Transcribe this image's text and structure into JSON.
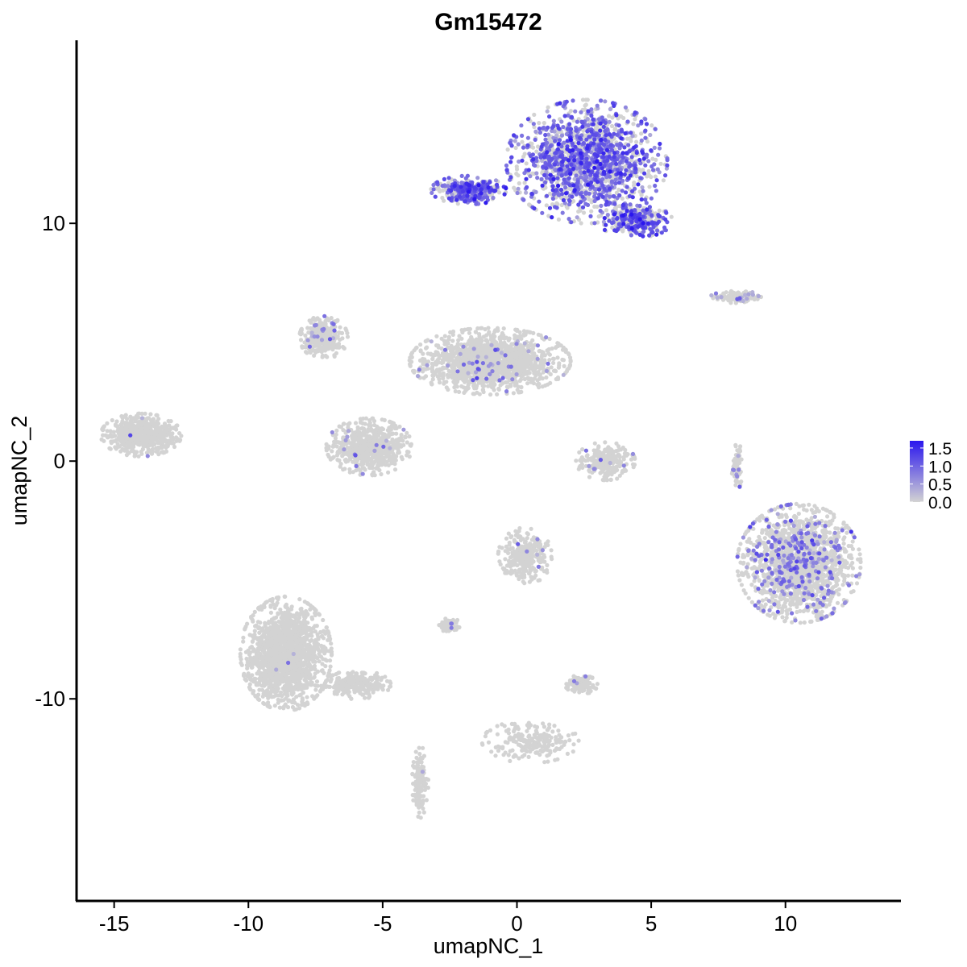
{
  "chart_data": {
    "type": "scatter",
    "title": "Gm15472",
    "xlabel": "umapNC_1",
    "ylabel": "umapNC_2",
    "xlim": [
      -16.4,
      14.3
    ],
    "ylim": [
      -18.5,
      17.7
    ],
    "x_ticks": [
      -15,
      -10,
      -5,
      0,
      5,
      10
    ],
    "x_tick_labels": [
      "-15",
      "-10",
      "-5",
      "0",
      "5",
      "10"
    ],
    "y_ticks": [
      -10,
      0,
      10
    ],
    "y_tick_labels": [
      "-10",
      "0",
      "10"
    ],
    "grid": false,
    "legend_position": "right",
    "color_scale": {
      "low": "#d3d3d3",
      "high": "#2a16ee",
      "min": 0.0,
      "max": 1.7,
      "ticks": [
        0.0,
        0.5,
        1.0,
        1.5
      ],
      "tick_labels": [
        "0.0",
        "0.5",
        "1.0",
        "1.5"
      ]
    },
    "clusters": [
      {
        "cx": 2.6,
        "cy": 12.6,
        "rx": 3.0,
        "ry": 2.6,
        "n": 1600,
        "expr_frac": 0.55,
        "expr_mean": 0.95
      },
      {
        "cx": -1.8,
        "cy": 11.4,
        "rx": 1.4,
        "ry": 0.6,
        "n": 350,
        "expr_frac": 0.6,
        "expr_mean": 1.0
      },
      {
        "cx": 4.4,
        "cy": 10.1,
        "rx": 1.4,
        "ry": 0.7,
        "n": 300,
        "expr_frac": 0.55,
        "expr_mean": 1.1
      },
      {
        "cx": 8.2,
        "cy": 6.9,
        "rx": 1.0,
        "ry": 0.25,
        "n": 120,
        "expr_frac": 0.15,
        "expr_mean": 0.6
      },
      {
        "cx": -7.2,
        "cy": 5.2,
        "rx": 0.9,
        "ry": 0.9,
        "n": 300,
        "expr_frac": 0.05,
        "expr_mean": 0.6
      },
      {
        "cx": -1.0,
        "cy": 4.2,
        "rx": 3.0,
        "ry": 1.4,
        "n": 1400,
        "expr_frac": 0.03,
        "expr_mean": 0.6
      },
      {
        "cx": -5.5,
        "cy": 0.6,
        "rx": 1.6,
        "ry": 1.2,
        "n": 700,
        "expr_frac": 0.03,
        "expr_mean": 0.6
      },
      {
        "cx": -14.0,
        "cy": 1.1,
        "rx": 1.5,
        "ry": 0.9,
        "n": 600,
        "expr_frac": 0.01,
        "expr_mean": 0.6
      },
      {
        "cx": 3.3,
        "cy": 0.0,
        "rx": 1.1,
        "ry": 0.8,
        "n": 250,
        "expr_frac": 0.03,
        "expr_mean": 0.6
      },
      {
        "cx": 10.5,
        "cy": -4.3,
        "rx": 2.3,
        "ry": 2.5,
        "n": 1700,
        "expr_frac": 0.14,
        "expr_mean": 0.75
      },
      {
        "cx": 0.3,
        "cy": -4.0,
        "rx": 1.0,
        "ry": 1.2,
        "n": 300,
        "expr_frac": 0.02,
        "expr_mean": 0.6
      },
      {
        "cx": -8.6,
        "cy": -8.1,
        "rx": 1.7,
        "ry": 2.4,
        "n": 1600,
        "expr_frac": 0.004,
        "expr_mean": 0.6
      },
      {
        "cx": -6.0,
        "cy": -9.4,
        "rx": 1.3,
        "ry": 0.6,
        "n": 250,
        "expr_frac": 0.0,
        "expr_mean": 0.0
      },
      {
        "cx": -3.6,
        "cy": -13.5,
        "rx": 0.3,
        "ry": 1.5,
        "n": 150,
        "expr_frac": 0.01,
        "expr_mean": 0.6
      },
      {
        "cx": 2.4,
        "cy": -9.4,
        "rx": 0.6,
        "ry": 0.4,
        "n": 120,
        "expr_frac": 0.03,
        "expr_mean": 0.6
      },
      {
        "cx": -2.5,
        "cy": -6.9,
        "rx": 0.4,
        "ry": 0.3,
        "n": 80,
        "expr_frac": 0.05,
        "expr_mean": 0.6
      },
      {
        "cx": 0.5,
        "cy": -11.8,
        "rx": 1.8,
        "ry": 0.9,
        "n": 200,
        "expr_frac": 0.0,
        "expr_mean": 0.0
      },
      {
        "cx": 8.2,
        "cy": -0.2,
        "rx": 0.2,
        "ry": 1.0,
        "n": 60,
        "expr_frac": 0.1,
        "expr_mean": 0.6
      }
    ]
  }
}
